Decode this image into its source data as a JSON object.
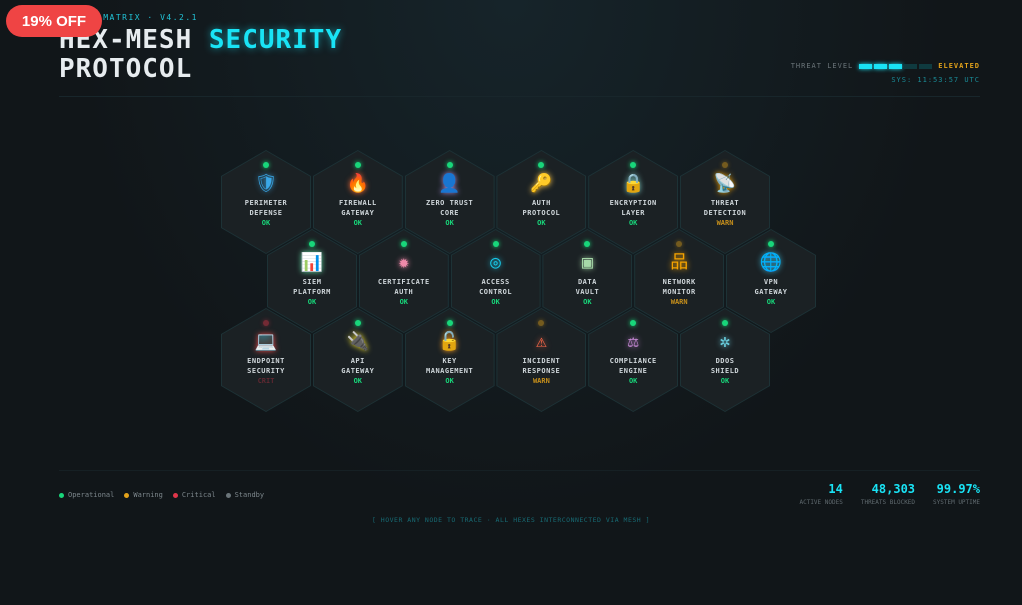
{
  "promo_badge": "19% OFF",
  "header": {
    "subtitle": "THREAT MATRIX · V4.2.1",
    "title_part1": "HEX-MESH",
    "title_highlight": "SECURITY",
    "title_part2": "PROTOCOL",
    "threat_label": "THREAT LEVEL",
    "threat_bars_active": 3,
    "threat_bars_total": 5,
    "threat_level": "ELEVATED",
    "sys_time": "SYS: 11:53:57 UTC"
  },
  "colors": {
    "ok": "#18d67a",
    "warn": "#e3a21a",
    "crit": "#e0364a",
    "standby": "#6b757a",
    "accent": "#19e3f5"
  },
  "nodes": [
    {
      "name": "PERIMETER\nDEFENSE",
      "status": "OK",
      "icon": "shield-icon",
      "glyph": "🛡",
      "color": "#3aa8e8"
    },
    {
      "name": "FIREWALL\nGATEWAY",
      "status": "OK",
      "icon": "flame-icon",
      "glyph": "🔥",
      "color": "#ff6a33"
    },
    {
      "name": "ZERO TRUST\nCORE",
      "status": "OK",
      "icon": "user-lock-icon",
      "glyph": "👤",
      "color": "#a78bdb"
    },
    {
      "name": "AUTH\nPROTOCOL",
      "status": "OK",
      "icon": "key-icon",
      "glyph": "🔑",
      "color": "#f2c14e"
    },
    {
      "name": "ENCRYPTION\nLAYER",
      "status": "OK",
      "icon": "lock-icon",
      "glyph": "🔒",
      "color": "#7cc9c0"
    },
    {
      "name": "THREAT\nDETECTION",
      "status": "WARN",
      "icon": "satellite-dish-icon",
      "glyph": "📡",
      "color": "#f5a300"
    },
    {
      "name": "SIEM\nPLATFORM",
      "status": "OK",
      "icon": "chart-icon",
      "glyph": "📊",
      "color": "#5fd6a0"
    },
    {
      "name": "CERTIFICATE\nAUTH",
      "status": "OK",
      "icon": "certificate-icon",
      "glyph": "✹",
      "color": "#f08aaa"
    },
    {
      "name": "ACCESS\nCONTROL",
      "status": "OK",
      "icon": "fingerprint-icon",
      "glyph": "◎",
      "color": "#19c8e8"
    },
    {
      "name": "DATA\nVAULT",
      "status": "OK",
      "icon": "vault-icon",
      "glyph": "▣",
      "color": "#a6d8a8"
    },
    {
      "name": "NETWORK\nMONITOR",
      "status": "WARN",
      "icon": "network-icon",
      "glyph": "品",
      "color": "#f5a300"
    },
    {
      "name": "VPN\nGATEWAY",
      "status": "OK",
      "icon": "globe-icon",
      "glyph": "🌐",
      "color": "#3ab8d8"
    },
    {
      "name": "ENDPOINT\nSECURITY",
      "status": "CRIT",
      "icon": "laptop-code-icon",
      "glyph": "💻",
      "color": "#ef4b4b"
    },
    {
      "name": "API\nGATEWAY",
      "status": "OK",
      "icon": "plug-icon",
      "glyph": "🔌",
      "color": "#f0e030"
    },
    {
      "name": "KEY\nMANAGEMENT",
      "status": "OK",
      "icon": "unlock-icon",
      "glyph": "🔓",
      "color": "#f59a20"
    },
    {
      "name": "INCIDENT\nRESPONSE",
      "status": "WARN",
      "icon": "warning-icon",
      "glyph": "⚠",
      "color": "#ff6a4a"
    },
    {
      "name": "COMPLIANCE\nENGINE",
      "status": "OK",
      "icon": "scale-icon",
      "glyph": "⚖",
      "color": "#c98ad8"
    },
    {
      "name": "DDOS\nSHIELD",
      "status": "OK",
      "icon": "shield-virus-icon",
      "glyph": "✲",
      "color": "#6ad0e0"
    }
  ],
  "legend": [
    {
      "label": "Operational",
      "color": "#18d67a"
    },
    {
      "label": "Warning",
      "color": "#e3a21a"
    },
    {
      "label": "Critical",
      "color": "#e0364a"
    },
    {
      "label": "Standby",
      "color": "#6b757a"
    }
  ],
  "stats": [
    {
      "value": "14",
      "label": "ACTIVE NODES"
    },
    {
      "value": "48,303",
      "label": "THREATS BLOCKED"
    },
    {
      "value": "99.97%",
      "label": "SYSTEM UPTIME"
    }
  ],
  "hint": "[ HOVER ANY NODE TO TRACE · ALL HEXES INTERCONNECTED VIA MESH ]"
}
